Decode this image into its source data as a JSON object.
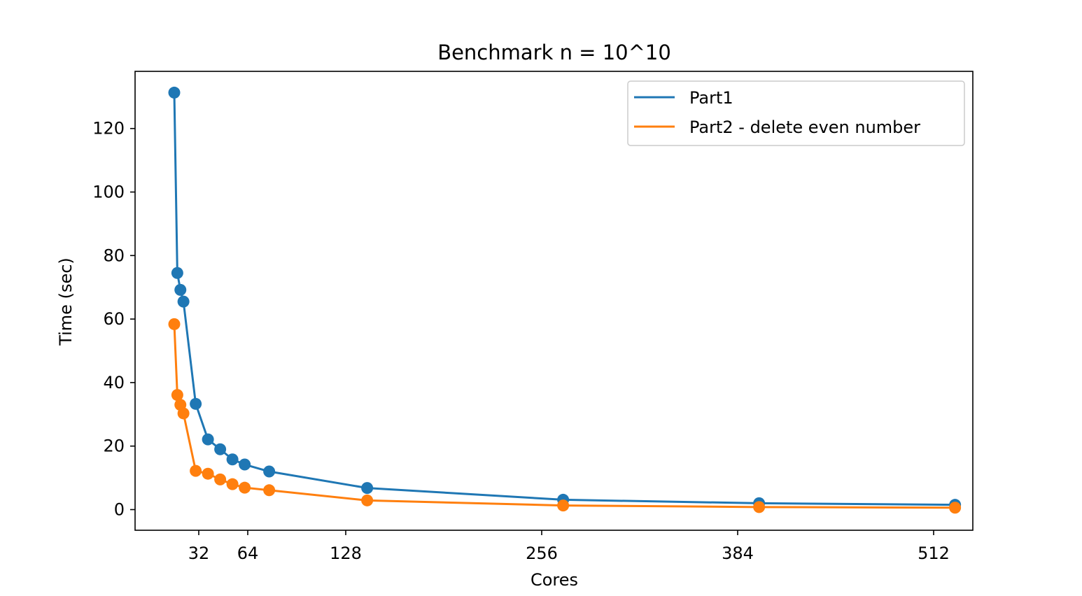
{
  "chart_data": {
    "type": "line",
    "title": "Benchmark n = 10^10",
    "xlabel": "Cores",
    "ylabel": "Time (sec)",
    "xlim": [
      -9.6,
      537.6
    ],
    "ylim": [
      -6.5,
      138
    ],
    "xticks": [
      32,
      64,
      128,
      256,
      384,
      512
    ],
    "xtick_labels": [
      "32",
      "64",
      "128",
      "256",
      "384",
      "512"
    ],
    "yticks": [
      0,
      20,
      40,
      60,
      80,
      100,
      120
    ],
    "ytick_labels": [
      "0",
      "20",
      "40",
      "60",
      "80",
      "100",
      "120"
    ],
    "grid": false,
    "legend_position": "top-right",
    "x": [
      16,
      18,
      20,
      22,
      30,
      38,
      46,
      54,
      62,
      78,
      142,
      270,
      398,
      526
    ],
    "series": [
      {
        "name": "Part1",
        "color": "#1f77b4",
        "values": [
          131.3,
          74.5,
          69.2,
          65.5,
          33.3,
          22.1,
          19.0,
          15.8,
          14.2,
          12.0,
          6.8,
          3.1,
          2.0,
          1.5
        ]
      },
      {
        "name": "Part2 - delete even number",
        "color": "#ff7f0e",
        "values": [
          58.4,
          36.1,
          33.0,
          30.3,
          12.2,
          11.3,
          9.5,
          8.0,
          6.9,
          6.1,
          2.9,
          1.3,
          0.8,
          0.6
        ]
      }
    ]
  }
}
